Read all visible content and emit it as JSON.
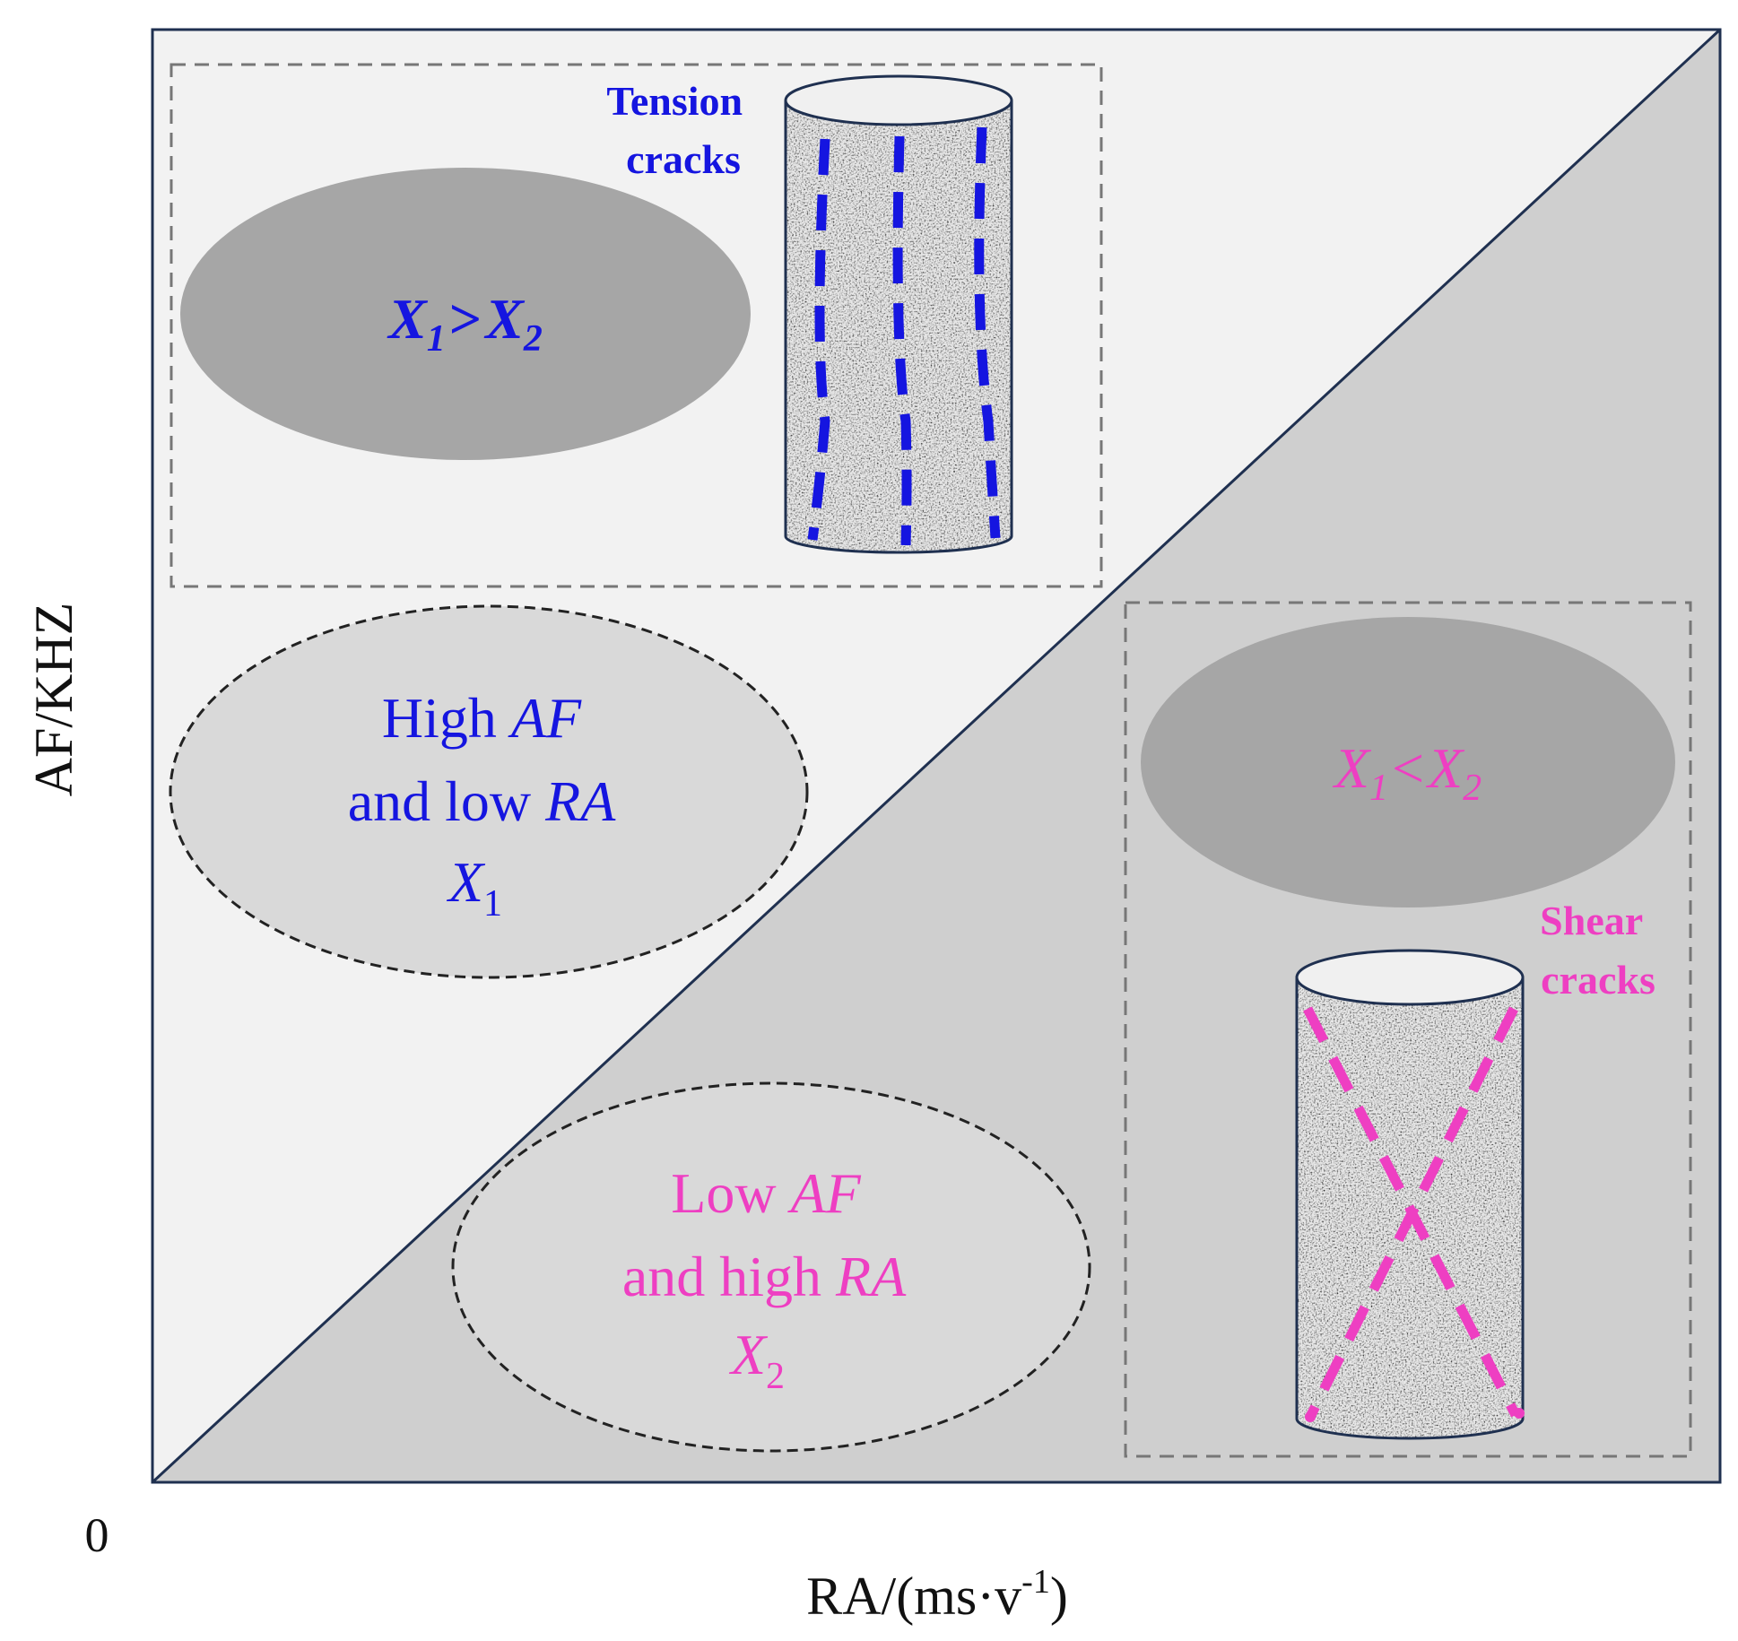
{
  "axes": {
    "y_label": "AF/KHZ",
    "x_label_main": "RA/(ms·v",
    "x_label_sup": "-1",
    "x_label_close": ")",
    "origin": "0"
  },
  "tension": {
    "label_line1": "Tension",
    "label_line2": "cracks",
    "ratio_a": "X",
    "ratio_a_sub": "1",
    "ratio_op": ">",
    "ratio_b": "X",
    "ratio_b_sub": "2",
    "desc_line1_a": "High ",
    "desc_line1_b": "AF",
    "desc_line2_a": "and low ",
    "desc_line2_b": "RA",
    "desc_var": "X",
    "desc_var_sub": "1"
  },
  "shear": {
    "label_line1": "Shear",
    "label_line2": "cracks",
    "ratio_a": "X",
    "ratio_a_sub": "1",
    "ratio_op": "<",
    "ratio_b": "X",
    "ratio_b_sub": "2",
    "desc_line1_a": "Low ",
    "desc_line1_b": "AF",
    "desc_line2_a": "and high ",
    "desc_line2_b": "RA",
    "desc_var": "X",
    "desc_var_sub": "2"
  },
  "colors": {
    "tension": "#1515e0",
    "shear": "#ee3fc2",
    "upper_region": "#f2f2f2",
    "lower_region": "#cfcfcf",
    "ellipse_dark": "#a6a6a6",
    "ellipse_light": "#d9d9d9",
    "frame": "#1f3050"
  }
}
